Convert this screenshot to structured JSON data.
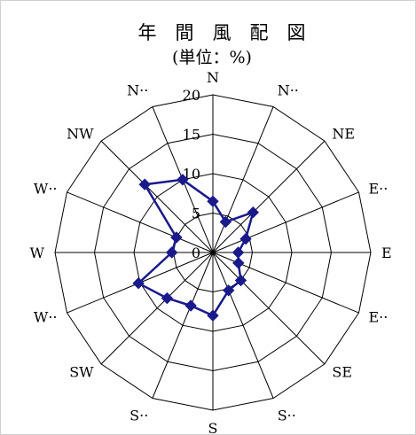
{
  "chart_data": {
    "type": "radar",
    "title": "年　間　風　配　図",
    "subtitle": "(単位：%)",
    "directions": [
      "N",
      "N··",
      "NE",
      "E··",
      "E",
      "E··",
      "SE",
      "S··",
      "S",
      "S··",
      "SW",
      "W··",
      "W",
      "W··",
      "NW",
      "N··"
    ],
    "radial_ticks": [
      "0",
      "5",
      "10",
      "15",
      "20"
    ],
    "rlim": [
      0,
      20
    ],
    "series": [
      {
        "color": "#1a1a8c",
        "values": [
          6.5,
          4.2,
          7.2,
          4.5,
          3.2,
          3.5,
          5.0,
          5.2,
          8.0,
          7.3,
          8.2,
          10.2,
          5.2,
          5.0,
          12.2,
          10.0
        ]
      }
    ],
    "line_color": "#000000"
  }
}
